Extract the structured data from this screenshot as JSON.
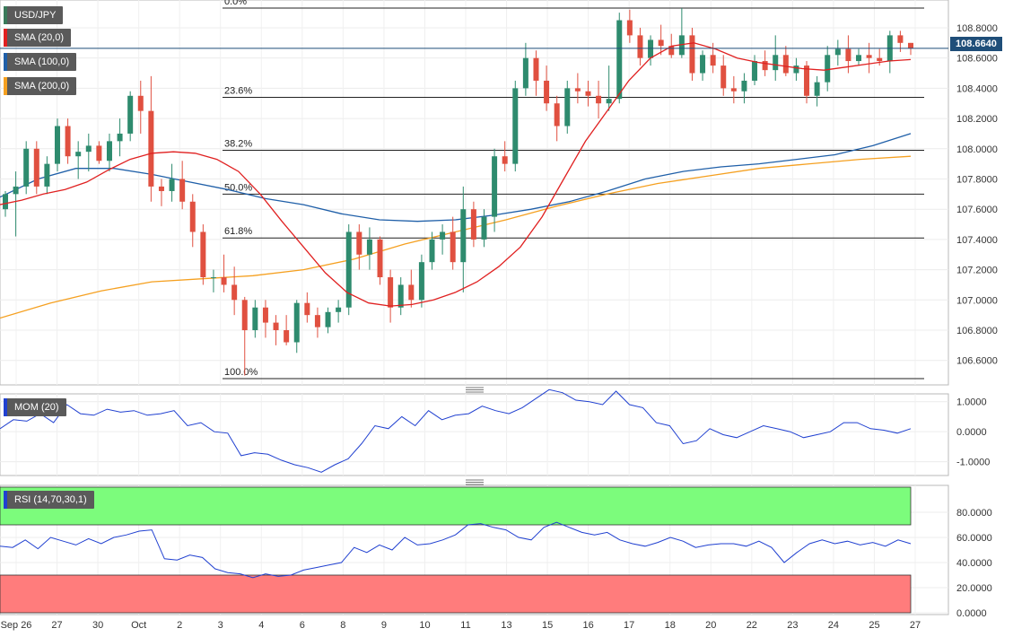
{
  "symbol": "USD/JPY",
  "last_price": "108.6640",
  "legend": {
    "sma20": "SMA (20,0)",
    "sma100": "SMA (100,0)",
    "sma200": "SMA (200,0)",
    "mom": "MOM (20)",
    "rsi": "RSI (14,70,30,1)"
  },
  "colors": {
    "bull": "#2e8b6e",
    "bear": "#e05040",
    "sma20": "#e02020",
    "sma100": "#1f5fa8",
    "sma200": "#f5a020",
    "indicator": "#2040d0",
    "rsi_overbought": "#7cfc7c",
    "rsi_oversold": "#ff7c7c"
  },
  "chart_data": [
    {
      "type": "candlestick",
      "title": "USD/JPY",
      "ylim": [
        106.45,
        108.96
      ],
      "y_ticks": [
        "108.8000",
        "108.6000",
        "108.4000",
        "108.2000",
        "108.0000",
        "107.8000",
        "107.6000",
        "107.4000",
        "107.2000",
        "107.0000",
        "106.8000",
        "106.6000"
      ],
      "y_tick_values": [
        108.8,
        108.6,
        108.4,
        108.2,
        108.0,
        107.8,
        107.6,
        107.4,
        107.2,
        107.0,
        106.8,
        106.6
      ],
      "x_ticks": [
        "Sep 26",
        "27",
        "30",
        "Oct",
        "2",
        "3",
        "4",
        "6",
        "8",
        "9",
        "10",
        "11",
        "13",
        "15",
        "16",
        "17",
        "18",
        "20",
        "22",
        "23",
        "24",
        "25",
        "27"
      ],
      "fibonacci": [
        {
          "label": "0.0%",
          "value": 108.93
        },
        {
          "label": "23.6%",
          "value": 108.34
        },
        {
          "label": "38.2%",
          "value": 107.99
        },
        {
          "label": "50.0%",
          "value": 107.7
        },
        {
          "label": "61.8%",
          "value": 107.41
        },
        {
          "label": "100.0%",
          "value": 106.48
        }
      ],
      "candles_ohlc": [
        [
          107.6,
          107.72,
          107.55,
          107.7
        ],
        [
          107.7,
          107.85,
          107.42,
          107.75
        ],
        [
          107.75,
          108.05,
          107.7,
          108.0
        ],
        [
          108.0,
          108.05,
          107.7,
          107.75
        ],
        [
          107.75,
          107.95,
          107.7,
          107.9
        ],
        [
          107.9,
          108.2,
          107.85,
          108.15
        ],
        [
          108.15,
          108.2,
          107.9,
          107.95
        ],
        [
          107.95,
          108.05,
          107.8,
          107.98
        ],
        [
          107.98,
          108.1,
          107.85,
          108.02
        ],
        [
          108.02,
          108.05,
          107.9,
          107.92
        ],
        [
          107.92,
          108.1,
          107.85,
          108.05
        ],
        [
          108.05,
          108.2,
          107.95,
          108.1
        ],
        [
          108.1,
          108.38,
          108.05,
          108.35
        ],
        [
          108.35,
          108.45,
          108.1,
          108.25
        ],
        [
          108.25,
          108.48,
          107.65,
          107.75
        ],
        [
          107.75,
          107.8,
          107.62,
          107.72
        ],
        [
          107.72,
          107.9,
          107.65,
          107.8
        ],
        [
          107.8,
          107.92,
          107.6,
          107.65
        ],
        [
          107.65,
          107.7,
          107.35,
          107.45
        ],
        [
          107.45,
          107.5,
          107.1,
          107.15
        ],
        [
          107.15,
          107.2,
          107.05,
          107.15
        ],
        [
          107.15,
          107.3,
          107.05,
          107.1
        ],
        [
          107.1,
          107.22,
          106.9,
          107.0
        ],
        [
          107.0,
          107.02,
          106.5,
          106.8
        ],
        [
          106.8,
          107.0,
          106.75,
          106.95
        ],
        [
          106.95,
          107.0,
          106.75,
          106.85
        ],
        [
          106.85,
          106.9,
          106.7,
          106.8
        ],
        [
          106.8,
          106.9,
          106.7,
          106.72
        ],
        [
          106.72,
          107.0,
          106.65,
          106.98
        ],
        [
          106.98,
          107.05,
          106.85,
          106.9
        ],
        [
          106.9,
          106.95,
          106.75,
          106.82
        ],
        [
          106.82,
          106.95,
          106.78,
          106.92
        ],
        [
          106.92,
          107.0,
          106.85,
          106.95
        ],
        [
          106.95,
          107.5,
          106.9,
          107.45
        ],
        [
          107.45,
          107.5,
          107.2,
          107.3
        ],
        [
          107.3,
          107.48,
          107.2,
          107.4
        ],
        [
          107.4,
          107.42,
          107.1,
          107.15
        ],
        [
          107.15,
          107.2,
          106.85,
          106.95
        ],
        [
          106.95,
          107.15,
          106.9,
          107.1
        ],
        [
          107.1,
          107.2,
          106.95,
          107.0
        ],
        [
          107.0,
          107.3,
          106.95,
          107.25
        ],
        [
          107.25,
          107.45,
          107.2,
          107.4
        ],
        [
          107.4,
          107.5,
          107.3,
          107.45
        ],
        [
          107.45,
          107.55,
          107.2,
          107.25
        ],
        [
          107.25,
          107.75,
          107.05,
          107.6
        ],
        [
          107.6,
          107.65,
          107.35,
          107.4
        ],
        [
          107.4,
          107.6,
          107.35,
          107.55
        ],
        [
          107.55,
          108.0,
          107.45,
          107.95
        ],
        [
          107.95,
          108.05,
          107.85,
          107.9
        ],
        [
          107.9,
          108.45,
          107.85,
          108.4
        ],
        [
          108.4,
          108.7,
          108.35,
          108.6
        ],
        [
          108.6,
          108.65,
          108.35,
          108.45
        ],
        [
          108.45,
          108.55,
          108.25,
          108.3
        ],
        [
          108.3,
          108.35,
          108.05,
          108.15
        ],
        [
          108.15,
          108.45,
          108.1,
          108.4
        ],
        [
          108.4,
          108.5,
          108.3,
          108.38
        ],
        [
          108.38,
          108.45,
          108.28,
          108.35
        ],
        [
          108.35,
          108.45,
          108.2,
          108.3
        ],
        [
          108.3,
          108.55,
          108.25,
          108.33
        ],
        [
          108.33,
          108.9,
          108.3,
          108.85
        ],
        [
          108.85,
          108.92,
          108.7,
          108.75
        ],
        [
          108.75,
          108.8,
          108.55,
          108.6
        ],
        [
          108.6,
          108.75,
          108.55,
          108.72
        ],
        [
          108.72,
          108.82,
          108.62,
          108.68
        ],
        [
          108.68,
          108.76,
          108.6,
          108.62
        ],
        [
          108.62,
          108.93,
          108.6,
          108.75
        ],
        [
          108.75,
          108.8,
          108.45,
          108.5
        ],
        [
          108.5,
          108.65,
          108.45,
          108.62
        ],
        [
          108.62,
          108.7,
          108.5,
          108.55
        ],
        [
          108.55,
          108.62,
          108.35,
          108.4
        ],
        [
          108.4,
          108.48,
          108.3,
          108.38
        ],
        [
          108.38,
          108.5,
          108.3,
          108.45
        ],
        [
          108.45,
          108.62,
          108.42,
          108.58
        ],
        [
          108.58,
          108.65,
          108.48,
          108.52
        ],
        [
          108.52,
          108.75,
          108.45,
          108.62
        ],
        [
          108.62,
          108.68,
          108.48,
          108.5
        ],
        [
          108.5,
          108.6,
          108.45,
          108.55
        ],
        [
          108.55,
          108.58,
          108.3,
          108.35
        ],
        [
          108.35,
          108.48,
          108.28,
          108.44
        ],
        [
          108.44,
          108.68,
          108.38,
          108.62
        ],
        [
          108.62,
          108.72,
          108.55,
          108.66
        ],
        [
          108.66,
          108.75,
          108.5,
          108.58
        ],
        [
          108.58,
          108.66,
          108.55,
          108.62
        ],
        [
          108.62,
          108.7,
          108.5,
          108.6
        ],
        [
          108.6,
          108.66,
          108.55,
          108.58
        ],
        [
          108.58,
          108.78,
          108.5,
          108.75
        ],
        [
          108.75,
          108.78,
          108.64,
          108.7
        ],
        [
          108.7,
          108.7,
          108.62,
          108.664
        ]
      ],
      "series": [
        {
          "name": "SMA (20,0)",
          "values": [
            107.63,
            107.66,
            107.7,
            107.73,
            107.78,
            107.86,
            107.93,
            107.97,
            107.98,
            107.97,
            107.93,
            107.85,
            107.7,
            107.52,
            107.35,
            107.18,
            107.05,
            106.98,
            106.96,
            106.97,
            107.0,
            107.05,
            107.12,
            107.22,
            107.35,
            107.55,
            107.8,
            108.05,
            108.25,
            108.45,
            108.6,
            108.68,
            108.7,
            108.66,
            108.6,
            108.57,
            108.55,
            108.53,
            108.52,
            108.54,
            108.56,
            108.58,
            108.59
          ]
        },
        {
          "name": "SMA (100,0)",
          "values": [
            107.68,
            107.8,
            107.87,
            107.87,
            107.83,
            107.78,
            107.73,
            107.67,
            107.63,
            107.57,
            107.53,
            107.52,
            107.53,
            107.56,
            107.6,
            107.65,
            107.72,
            107.8,
            107.85,
            107.88,
            107.9,
            107.93,
            107.96,
            108.02,
            108.1
          ]
        },
        {
          "name": "SMA (200,0)",
          "values": [
            106.88,
            106.98,
            107.06,
            107.12,
            107.14,
            107.16,
            107.2,
            107.27,
            107.37,
            107.45,
            107.53,
            107.62,
            107.7,
            107.77,
            107.82,
            107.87,
            107.9,
            107.93,
            107.95
          ]
        }
      ]
    },
    {
      "type": "line",
      "title": "MOM (20)",
      "ylim": [
        -1.4,
        1.2
      ],
      "y_ticks": [
        "1.0000",
        "0.0000",
        "-1.0000"
      ],
      "y_tick_values": [
        1.0,
        0.0,
        -1.0
      ],
      "series": [
        {
          "name": "MOM (20)",
          "values": [
            0.1,
            0.4,
            0.35,
            0.6,
            0.3,
            0.9,
            0.6,
            0.55,
            0.75,
            0.65,
            0.7,
            0.55,
            0.6,
            0.7,
            0.2,
            0.3,
            0.0,
            -0.05,
            -0.8,
            -0.7,
            -0.75,
            -0.95,
            -1.1,
            -1.2,
            -1.35,
            -1.1,
            -0.9,
            -0.4,
            0.2,
            0.1,
            0.5,
            0.2,
            0.7,
            0.4,
            0.55,
            0.6,
            0.85,
            0.7,
            0.6,
            0.8,
            1.1,
            1.4,
            1.3,
            1.05,
            1.0,
            0.9,
            1.35,
            0.9,
            0.8,
            0.3,
            0.2,
            -0.4,
            -0.3,
            0.1,
            -0.1,
            -0.2,
            0.0,
            0.2,
            0.1,
            0.0,
            -0.2,
            -0.1,
            0.0,
            0.3,
            0.3,
            0.1,
            0.05,
            -0.05,
            0.1
          ]
        }
      ]
    },
    {
      "type": "line",
      "title": "RSI (14,70,30,1)",
      "ylim": [
        0,
        100
      ],
      "y_ticks": [
        "80.0000",
        "60.0000",
        "40.0000",
        "20.0000",
        "0.0000"
      ],
      "y_tick_values": [
        80,
        60,
        40,
        20,
        0
      ],
      "bands": [
        {
          "from": 70,
          "to": 100
        },
        {
          "from": 0,
          "to": 30
        }
      ],
      "series": [
        {
          "name": "RSI (14,70,30,1)",
          "values": [
            53,
            52,
            58,
            51,
            60,
            57,
            54,
            59,
            55,
            60,
            62,
            65,
            66,
            43,
            42,
            46,
            44,
            35,
            32,
            31,
            28,
            31,
            29,
            30,
            34,
            36,
            38,
            40,
            52,
            48,
            54,
            50,
            60,
            54,
            55,
            58,
            62,
            70,
            71,
            68,
            66,
            60,
            58,
            68,
            72,
            68,
            64,
            62,
            64,
            58,
            55,
            53,
            56,
            60,
            57,
            52,
            54,
            55,
            55,
            53,
            57,
            52,
            40,
            48,
            55,
            58,
            55,
            57,
            54,
            56,
            53,
            58,
            55
          ]
        }
      ]
    }
  ]
}
